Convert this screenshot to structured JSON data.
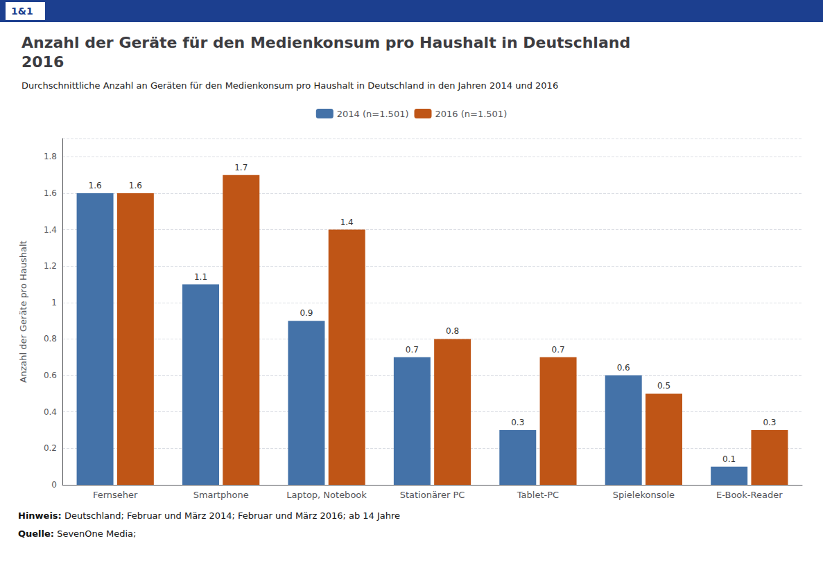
{
  "chart_data": {
    "type": "bar",
    "title": "Anzahl der Geräte für den Medienkonsum pro Haushalt in Deutschland\n2016",
    "subtitle": "Durchschnittliche Anzahl an Geräten für den Medienkonsum pro Haushalt in Deutschland in den Jahren 2014 und 2016",
    "annotations": [
      "1&1",
      "Hinweis: Deutschland; Februar und März 2014; Februar und März 2016; ab 14 Jahre",
      "Quelle: SevenOne Media;"
    ],
    "categories": [
      "Fernseher",
      "Smartphone",
      "Laptop, Notebook",
      "Stationärer PC",
      "Tablet-PC",
      "Spielekonsole",
      "E-Book-Reader"
    ],
    "series": [
      {
        "name": "2014 (n=1.501)",
        "color": "#4472a8",
        "values": [
          1.6,
          1.1,
          0.9,
          0.7,
          0.3,
          0.6,
          0.1
        ]
      },
      {
        "name": "2016 (n=1.501)",
        "color": "#bf5516",
        "values": [
          1.6,
          1.7,
          1.4,
          0.8,
          0.7,
          0.5,
          0.3
        ]
      }
    ],
    "ylabel": "Anzahl der Geräte pro Haushalt",
    "ylim": [
      0,
      1.9
    ],
    "yticks": [
      0,
      0.2,
      0.4,
      0.6,
      0.8,
      1,
      1.2,
      1.4,
      1.6,
      1.8
    ],
    "grid": true,
    "legend": "top",
    "data_labels": true
  }
}
